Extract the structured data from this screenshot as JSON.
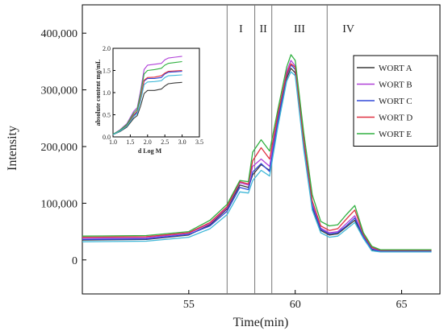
{
  "chart_data": {
    "type": "line",
    "xlabel": "Time(min)",
    "ylabel": "Intensity",
    "xlim": [
      50,
      66.8
    ],
    "ylim": [
      -60000,
      450000
    ],
    "xticks": [
      55,
      60,
      65
    ],
    "yticks": [
      0,
      100000,
      200000,
      300000,
      400000
    ],
    "xtick_labels": [
      "55",
      "60",
      "65"
    ],
    "ytick_labels": [
      "0",
      "100,000",
      "200,000",
      "300,000",
      "400,000"
    ],
    "regions": {
      "boundaries": [
        56.8,
        58.1,
        58.9,
        61.5
      ],
      "labels": [
        {
          "text": "I",
          "x": 57.45
        },
        {
          "text": "II",
          "x": 58.5
        },
        {
          "text": "III",
          "x": 60.2
        },
        {
          "text": "IV",
          "x": 62.5
        }
      ]
    },
    "legend": {
      "position": "top-right"
    },
    "series": [
      {
        "name": "WORT A",
        "color": "#3a3a3a",
        "x": [
          50,
          53,
          55,
          56,
          56.8,
          57.4,
          57.8,
          58.0,
          58.4,
          58.8,
          59.2,
          59.6,
          59.8,
          60.0,
          60.4,
          60.8,
          61.2,
          61.6,
          62.0,
          62.4,
          62.8,
          63.2,
          63.6,
          64.0,
          66.4
        ],
        "y": [
          35000,
          36000,
          44000,
          62000,
          90000,
          132000,
          128000,
          150000,
          168000,
          158000,
          245000,
          320000,
          338000,
          330000,
          200000,
          92000,
          52000,
          44000,
          46000,
          58000,
          70000,
          40000,
          18000,
          15000,
          15000
        ]
      },
      {
        "name": "WORT B",
        "color": "#b040d8",
        "x": [
          50,
          53,
          55,
          56,
          56.8,
          57.4,
          57.8,
          58.0,
          58.4,
          58.8,
          59.2,
          59.6,
          59.8,
          60.0,
          60.4,
          60.8,
          61.2,
          61.6,
          62.0,
          62.4,
          62.8,
          63.2,
          63.6,
          64.0,
          66.4
        ],
        "y": [
          38000,
          39000,
          47000,
          64000,
          92000,
          136000,
          132000,
          165000,
          178000,
          165000,
          255000,
          332000,
          352000,
          342000,
          210000,
          98000,
          56000,
          48000,
          50000,
          64000,
          78000,
          42000,
          20000,
          16000,
          16000
        ]
      },
      {
        "name": "WORT C",
        "color": "#3048d8",
        "x": [
          50,
          53,
          55,
          56,
          56.8,
          57.4,
          57.8,
          58.0,
          58.4,
          58.8,
          59.2,
          59.6,
          59.8,
          60.0,
          60.4,
          60.8,
          61.2,
          61.6,
          62.0,
          62.4,
          62.8,
          63.2,
          63.6,
          64.0,
          66.4
        ],
        "y": [
          36000,
          37000,
          45000,
          60000,
          86000,
          128000,
          124000,
          155000,
          170000,
          156000,
          248000,
          325000,
          344000,
          336000,
          204000,
          95000,
          54000,
          46000,
          48000,
          60000,
          74000,
          41000,
          19000,
          15000,
          15000
        ]
      },
      {
        "name": "WORT D",
        "color": "#e03040",
        "x": [
          50,
          53,
          55,
          56,
          56.8,
          57.4,
          57.8,
          58.0,
          58.4,
          58.8,
          59.2,
          59.6,
          59.8,
          60.0,
          60.4,
          60.8,
          61.2,
          61.6,
          62.0,
          62.4,
          62.8,
          63.2,
          63.6,
          64.0,
          66.4
        ],
        "y": [
          40000,
          41000,
          48000,
          66000,
          94000,
          138000,
          134000,
          175000,
          198000,
          178000,
          260000,
          328000,
          346000,
          340000,
          212000,
          104000,
          60000,
          52000,
          55000,
          72000,
          88000,
          45000,
          22000,
          17000,
          17000
        ]
      },
      {
        "name": "WORT E",
        "color": "#30b040",
        "x": [
          50,
          53,
          55,
          56,
          56.8,
          57.4,
          57.8,
          58.0,
          58.4,
          58.8,
          59.2,
          59.6,
          59.8,
          60.0,
          60.4,
          60.8,
          61.2,
          61.6,
          62.0,
          62.4,
          62.8,
          63.2,
          63.6,
          64.0,
          66.4
        ],
        "y": [
          42000,
          43000,
          50000,
          70000,
          98000,
          140000,
          138000,
          190000,
          212000,
          192000,
          268000,
          340000,
          362000,
          352000,
          225000,
          115000,
          68000,
          60000,
          62000,
          80000,
          96000,
          48000,
          24000,
          18000,
          18000
        ]
      },
      {
        "name": "",
        "color": "#40b8d8",
        "x": [
          50,
          53,
          55,
          56,
          56.8,
          57.4,
          57.8,
          58.0,
          58.4,
          58.8,
          59.2,
          59.6,
          59.8,
          60.0,
          60.4,
          60.8,
          61.2,
          61.6,
          62.0,
          62.4,
          62.8,
          63.2,
          63.6,
          64.0,
          66.4
        ],
        "y": [
          32000,
          33000,
          40000,
          55000,
          80000,
          120000,
          118000,
          140000,
          158000,
          148000,
          238000,
          315000,
          332000,
          325000,
          195000,
          88000,
          48000,
          40000,
          42000,
          54000,
          66000,
          38000,
          16000,
          14000,
          14000
        ]
      }
    ],
    "inset": {
      "type": "line",
      "xlabel": "d Log M",
      "ylabel": "absolute content mg/mL",
      "xlim": [
        1.0,
        3.5
      ],
      "ylim": [
        0,
        2.0
      ],
      "xticks": [
        1.0,
        1.5,
        2.0,
        2.5,
        3.0,
        3.5
      ],
      "yticks": [
        0.0,
        0.5,
        1.0,
        1.5,
        2.0
      ],
      "xtick_labels": [
        "1.0",
        "1.5",
        "2.0",
        "2.5",
        "3.0",
        "3.5"
      ],
      "ytick_labels": [
        "0.0",
        "0.5",
        "1.0",
        "1.5",
        "2.0"
      ],
      "x": [
        1.0,
        1.2,
        1.4,
        1.6,
        1.7,
        1.8,
        1.9,
        2.0,
        2.2,
        2.4,
        2.5,
        2.6,
        2.8,
        3.0
      ],
      "series": [
        {
          "name": "WORT A",
          "color": "#3a3a3a",
          "values": [
            0.05,
            0.12,
            0.22,
            0.42,
            0.48,
            0.7,
            0.98,
            1.05,
            1.05,
            1.08,
            1.15,
            1.2,
            1.22,
            1.23
          ]
        },
        {
          "name": "WORT B",
          "color": "#b040d8",
          "values": [
            0.06,
            0.16,
            0.3,
            0.58,
            0.66,
            1.05,
            1.52,
            1.62,
            1.64,
            1.66,
            1.74,
            1.78,
            1.8,
            1.82
          ]
        },
        {
          "name": "WORT C",
          "color": "#3048d8",
          "values": [
            0.05,
            0.14,
            0.26,
            0.48,
            0.56,
            0.86,
            1.26,
            1.32,
            1.32,
            1.34,
            1.42,
            1.46,
            1.47,
            1.48
          ]
        },
        {
          "name": "WORT D",
          "color": "#e03040",
          "values": [
            0.05,
            0.14,
            0.26,
            0.5,
            0.58,
            0.88,
            1.28,
            1.34,
            1.35,
            1.38,
            1.44,
            1.48,
            1.49,
            1.5
          ]
        },
        {
          "name": "WORT E",
          "color": "#30b040",
          "values": [
            0.06,
            0.15,
            0.28,
            0.54,
            0.62,
            0.98,
            1.42,
            1.5,
            1.52,
            1.55,
            1.62,
            1.66,
            1.68,
            1.7
          ]
        },
        {
          "name": "",
          "color": "#40b8d8",
          "values": [
            0.05,
            0.13,
            0.24,
            0.46,
            0.53,
            0.82,
            1.18,
            1.24,
            1.25,
            1.27,
            1.34,
            1.38,
            1.39,
            1.4
          ]
        }
      ]
    }
  }
}
